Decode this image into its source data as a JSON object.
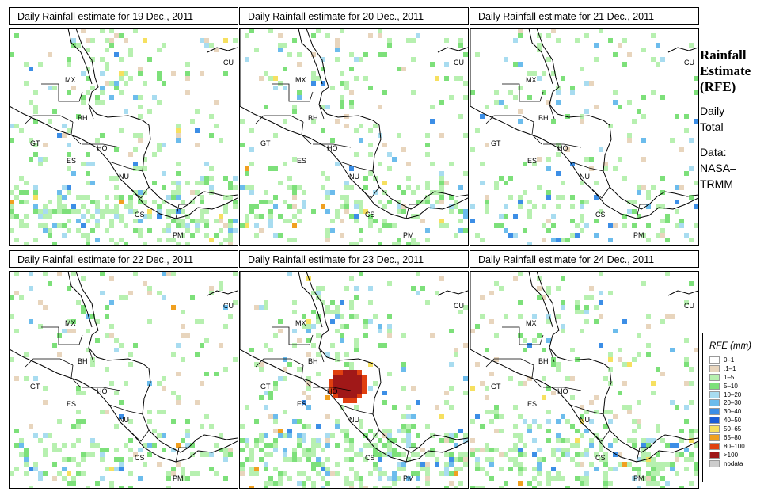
{
  "panels": [
    {
      "title": "Daily Rainfall estimate for  19 Dec., 2011",
      "seed": 19,
      "intensity": 1.0
    },
    {
      "title": "Daily Rainfall estimate for  20 Dec., 2011",
      "seed": 20,
      "intensity": 0.6
    },
    {
      "title": "Daily Rainfall estimate for  21 Dec., 2011",
      "seed": 21,
      "intensity": 0.35
    },
    {
      "title": "Daily Rainfall estimate for  22 Dec., 2011",
      "seed": 22,
      "intensity": 0.55
    },
    {
      "title": "Daily Rainfall estimate for  23 Dec., 2011",
      "seed": 23,
      "intensity": 1.2
    },
    {
      "title": "Daily Rainfall estimate for  24 Dec., 2011",
      "seed": 24,
      "intensity": 0.9
    }
  ],
  "country_labels": [
    "MX",
    "BH",
    "GT",
    "HO",
    "ES",
    "NU",
    "CS",
    "PM",
    "CU"
  ],
  "side": {
    "title_line1": "Rainfall",
    "title_line2": "Estimate",
    "title_line3": "(RFE)",
    "period_line1": "Daily",
    "period_line2": "Total",
    "data_line1": "Data:",
    "data_line2": "NASA–",
    "data_line3": "TRMM"
  },
  "legend": {
    "title": "RFE (mm)",
    "items": [
      {
        "label": "0–1",
        "color": "#ffffff"
      },
      {
        "label": ".1–1",
        "color": "#e8d5bd"
      },
      {
        "label": "1–5",
        "color": "#b7f0b0"
      },
      {
        "label": "5–10",
        "color": "#7de07a"
      },
      {
        "label": "10–20",
        "color": "#a8dcf0"
      },
      {
        "label": "20–30",
        "color": "#6cbcec"
      },
      {
        "label": "30–40",
        "color": "#3c8ee6"
      },
      {
        "label": "40–50",
        "color": "#1c5ed8"
      },
      {
        "label": "50–65",
        "color": "#f6e060"
      },
      {
        "label": "65–80",
        "color": "#f0a020"
      },
      {
        "label": "80–100",
        "color": "#e04010"
      },
      {
        "label": ">100",
        "color": "#a01818"
      },
      {
        "label": "nodata",
        "color": "#cccccc"
      }
    ]
  }
}
